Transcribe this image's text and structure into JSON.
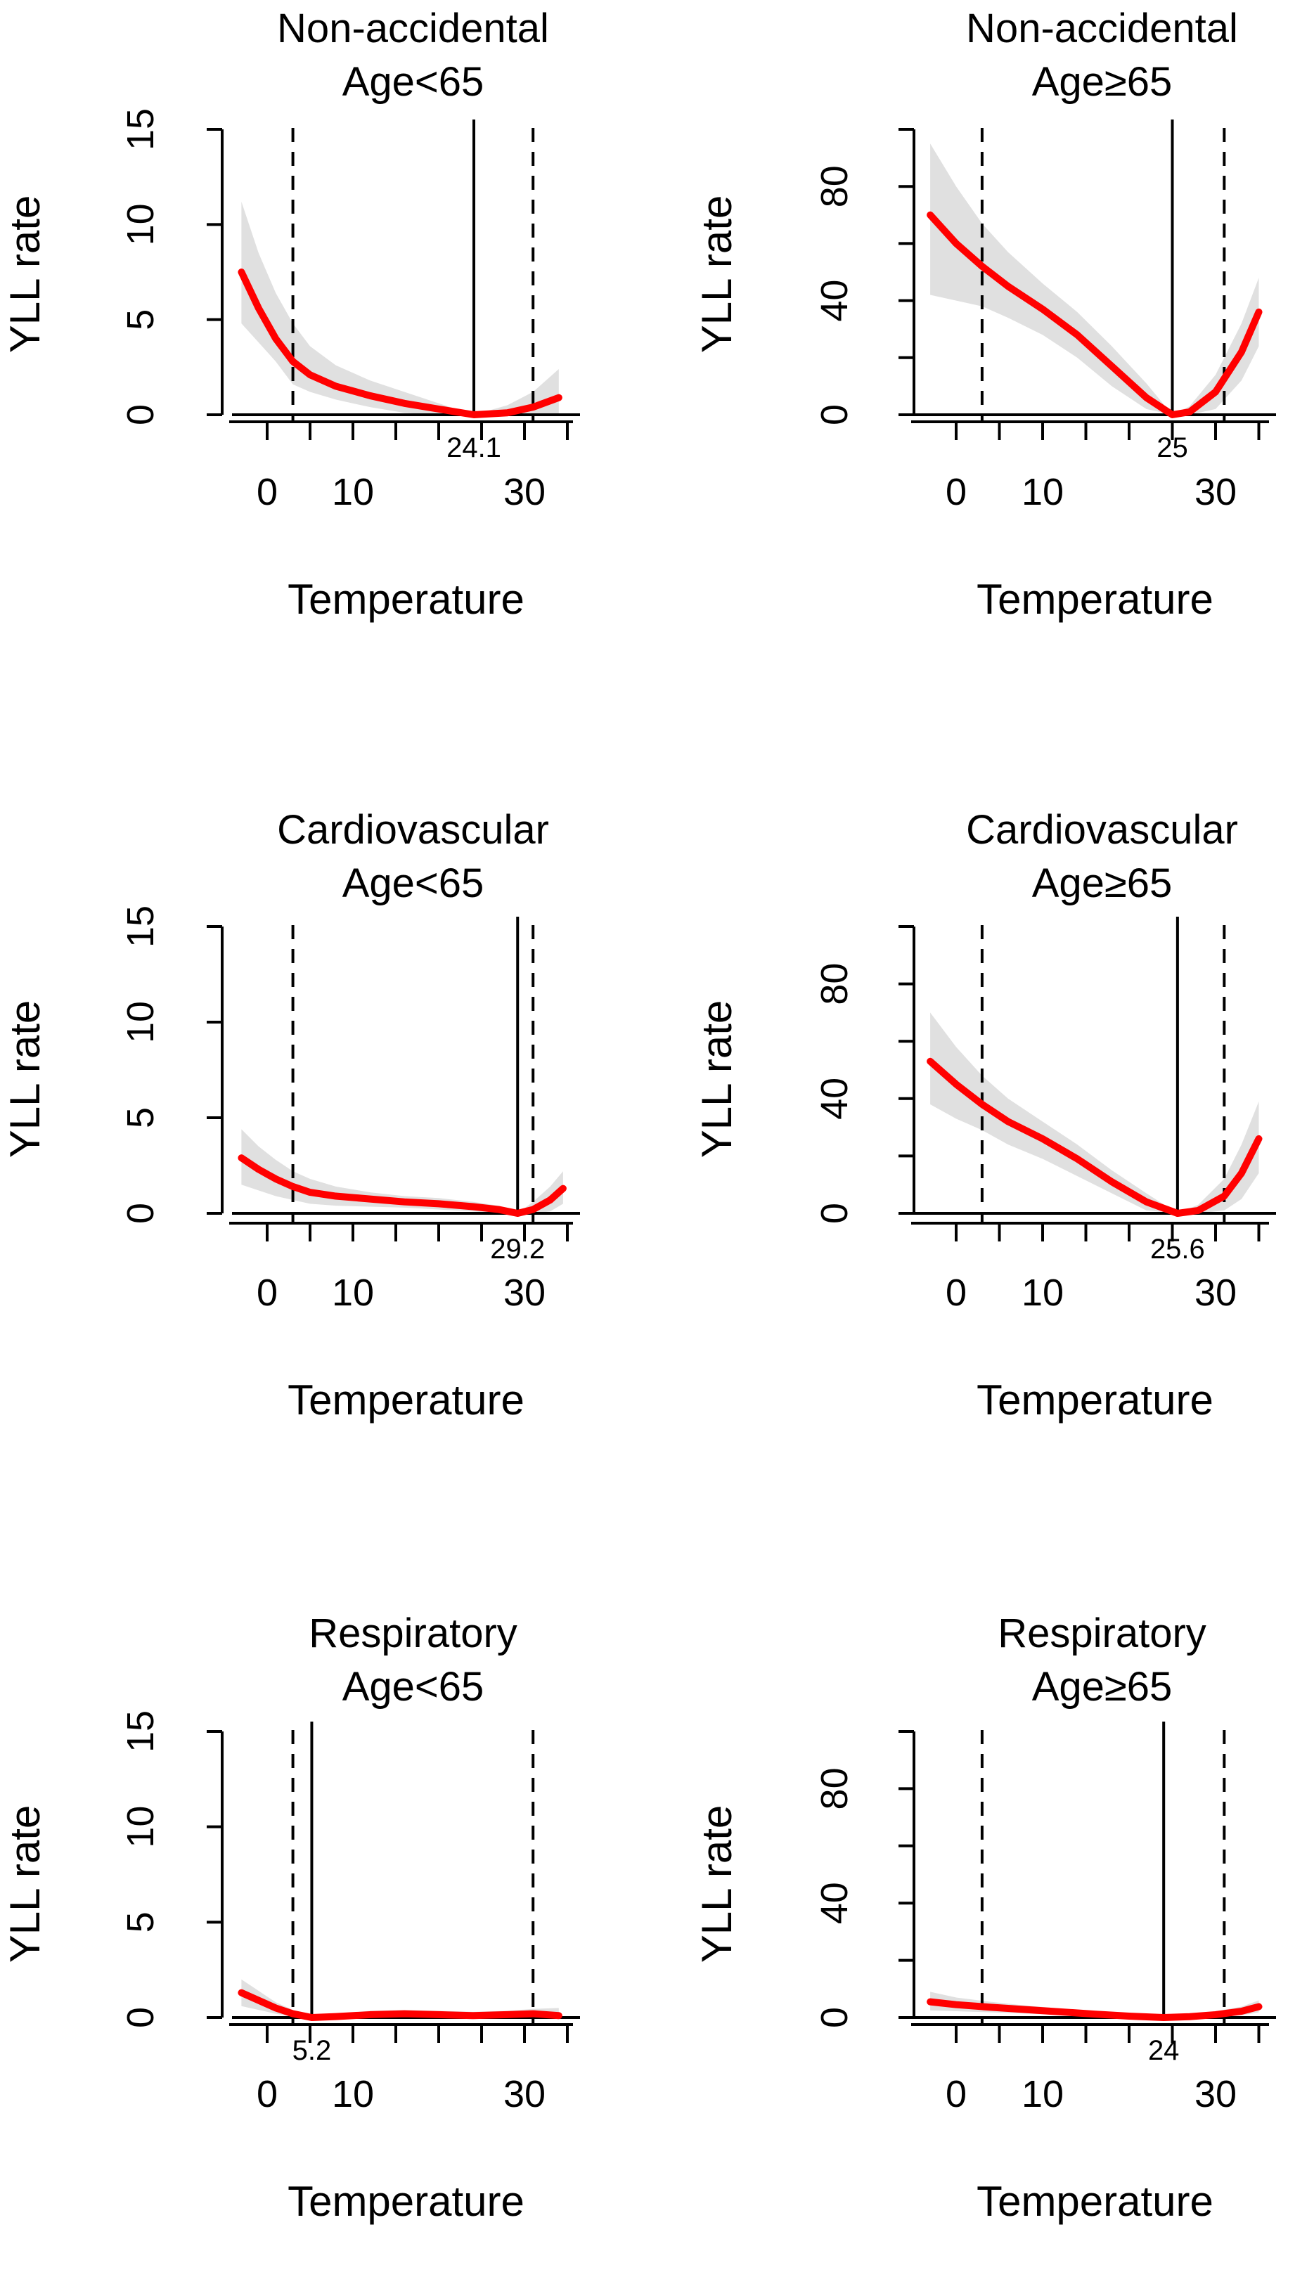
{
  "chart_data": [
    {
      "type": "line",
      "title": "Non-accidental",
      "subtitle": "Age<65",
      "xlabel": "Temperature",
      "ylabel": "YLL rate",
      "xlim": [
        -5,
        35
      ],
      "ylim": [
        0,
        15
      ],
      "xticks": [
        0,
        10,
        30
      ],
      "yticks": [
        0,
        5,
        10,
        15
      ],
      "percentile_lines": [
        3,
        31
      ],
      "mmt": 24.1,
      "mmt_label": "24.1",
      "series": [
        {
          "name": "YLL rate",
          "color": "#ff0000",
          "x": [
            -3,
            -1,
            1,
            3,
            5,
            8,
            12,
            16,
            20,
            24.1,
            28,
            31,
            34
          ],
          "y": [
            7.5,
            5.6,
            4,
            2.8,
            2.1,
            1.5,
            1.0,
            0.6,
            0.3,
            0.0,
            0.1,
            0.4,
            0.9
          ]
        }
      ],
      "ci_upper": [
        11.2,
        8.5,
        6.4,
        4.8,
        3.6,
        2.6,
        1.8,
        1.2,
        0.6,
        0.0,
        0.5,
        1.2,
        2.4
      ],
      "ci_lower": [
        4.8,
        3.8,
        2.8,
        1.6,
        1.2,
        0.8,
        0.4,
        0.1,
        0.0,
        0.0,
        0.0,
        0.0,
        0.0
      ]
    },
    {
      "type": "line",
      "title": "Non-accidental",
      "subtitle": "Age≥65",
      "xlabel": "Temperature",
      "ylabel": "YLL rate",
      "xlim": [
        -5,
        35
      ],
      "ylim": [
        0,
        100
      ],
      "xticks": [
        0,
        10,
        30
      ],
      "yticks": [
        0,
        40,
        80
      ],
      "percentile_lines": [
        3,
        31
      ],
      "mmt": 25,
      "mmt_label": "25",
      "series": [
        {
          "name": "YLL rate",
          "color": "#ff0000",
          "x": [
            -3,
            0,
            3,
            6,
            10,
            14,
            18,
            22,
            25,
            27,
            30,
            33,
            35
          ],
          "y": [
            70,
            60,
            52,
            45,
            37,
            28,
            17,
            6,
            0,
            1,
            8,
            22,
            36
          ]
        }
      ],
      "ci_upper": [
        95,
        80,
        67,
        57,
        46,
        36,
        24,
        11,
        0,
        3,
        14,
        32,
        48
      ],
      "ci_lower": [
        42,
        40,
        38,
        34,
        28,
        20,
        10,
        2,
        0,
        0,
        2,
        12,
        24
      ]
    },
    {
      "type": "line",
      "title": "Cardiovascular",
      "subtitle": "Age<65",
      "xlabel": "Temperature",
      "ylabel": "YLL rate",
      "xlim": [
        -5,
        35
      ],
      "ylim": [
        0,
        15
      ],
      "xticks": [
        0,
        10,
        30
      ],
      "yticks": [
        0,
        5,
        10,
        15
      ],
      "percentile_lines": [
        3,
        31
      ],
      "mmt": 29.2,
      "mmt_label": "29.2",
      "series": [
        {
          "name": "YLL rate",
          "color": "#ff0000",
          "x": [
            -3,
            -1,
            1,
            3,
            5,
            8,
            12,
            16,
            20,
            24,
            27,
            29.2,
            31,
            33,
            34.5
          ],
          "y": [
            2.9,
            2.3,
            1.8,
            1.4,
            1.1,
            0.9,
            0.75,
            0.6,
            0.5,
            0.35,
            0.2,
            0.0,
            0.2,
            0.7,
            1.3
          ]
        }
      ],
      "ci_upper": [
        4.4,
        3.5,
        2.8,
        2.2,
        1.8,
        1.4,
        1.1,
        0.9,
        0.8,
        0.6,
        0.4,
        0.0,
        0.6,
        1.4,
        2.2
      ],
      "ci_lower": [
        1.5,
        1.2,
        0.9,
        0.7,
        0.5,
        0.4,
        0.35,
        0.3,
        0.2,
        0.1,
        0.0,
        0.0,
        0.0,
        0.1,
        0.5
      ]
    },
    {
      "type": "line",
      "title": "Cardiovascular",
      "subtitle": "Age≥65",
      "xlabel": "Temperature",
      "ylabel": "YLL rate",
      "xlim": [
        -5,
        35
      ],
      "ylim": [
        0,
        100
      ],
      "xticks": [
        0,
        10,
        30
      ],
      "yticks": [
        0,
        40,
        80
      ],
      "percentile_lines": [
        3,
        31
      ],
      "mmt": 25.6,
      "mmt_label": "25.6",
      "series": [
        {
          "name": "YLL rate",
          "color": "#ff0000",
          "x": [
            -3,
            0,
            3,
            6,
            10,
            14,
            18,
            22,
            25.6,
            28,
            31,
            33,
            35
          ],
          "y": [
            53,
            45,
            38,
            32,
            26,
            19,
            11,
            4,
            0,
            1,
            6,
            14,
            26
          ]
        }
      ],
      "ci_upper": [
        70,
        58,
        48,
        40,
        32,
        24,
        15,
        7,
        0,
        3,
        12,
        24,
        39
      ],
      "ci_lower": [
        38,
        33,
        29,
        24,
        19,
        13,
        7,
        1,
        0,
        0,
        1,
        5,
        14
      ]
    },
    {
      "type": "line",
      "title": "Respiratory",
      "subtitle": "Age<65",
      "xlabel": "Temperature",
      "ylabel": "YLL rate",
      "xlim": [
        -5,
        35
      ],
      "ylim": [
        0,
        15
      ],
      "xticks": [
        0,
        10,
        30
      ],
      "yticks": [
        0,
        5,
        10,
        15
      ],
      "percentile_lines": [
        3,
        31
      ],
      "mmt": 5.2,
      "mmt_label": "5.2",
      "series": [
        {
          "name": "YLL rate",
          "color": "#ff0000",
          "x": [
            -3,
            -1,
            1,
            3,
            5.2,
            8,
            12,
            16,
            20,
            24,
            28,
            31,
            34
          ],
          "y": [
            1.3,
            0.9,
            0.5,
            0.2,
            0.0,
            0.05,
            0.15,
            0.2,
            0.15,
            0.1,
            0.15,
            0.2,
            0.1
          ]
        }
      ],
      "ci_upper": [
        2.0,
        1.4,
        0.8,
        0.4,
        0.0,
        0.2,
        0.35,
        0.4,
        0.35,
        0.3,
        0.35,
        0.45,
        0.5
      ],
      "ci_lower": [
        0.6,
        0.4,
        0.2,
        0.05,
        0.0,
        0.0,
        0.0,
        0.05,
        0.0,
        0.0,
        0.0,
        0.0,
        0.0
      ]
    },
    {
      "type": "line",
      "title": "Respiratory",
      "subtitle": "Age≥65",
      "xlabel": "Temperature",
      "ylabel": "YLL rate",
      "xlim": [
        -5,
        35
      ],
      "ylim": [
        0,
        100
      ],
      "xticks": [
        0,
        10,
        30
      ],
      "yticks": [
        0,
        40,
        80
      ],
      "percentile_lines": [
        3,
        31
      ],
      "mmt": 24,
      "mmt_label": "24",
      "series": [
        {
          "name": "YLL rate",
          "color": "#ff0000",
          "x": [
            -3,
            0,
            4,
            8,
            12,
            16,
            20,
            24,
            27,
            30,
            33,
            35
          ],
          "y": [
            5.5,
            4.5,
            3.6,
            2.8,
            2.0,
            1.2,
            0.5,
            0.0,
            0.3,
            1.0,
            2.2,
            3.8
          ]
        }
      ],
      "ci_upper": [
        9,
        7,
        5.5,
        4.2,
        3.2,
        2.2,
        1.2,
        0.0,
        1.0,
        2.2,
        3.8,
        6.0
      ],
      "ci_lower": [
        2.5,
        2.2,
        1.8,
        1.4,
        0.9,
        0.4,
        0.1,
        0.0,
        0.0,
        0.2,
        0.8,
        1.8
      ]
    }
  ]
}
